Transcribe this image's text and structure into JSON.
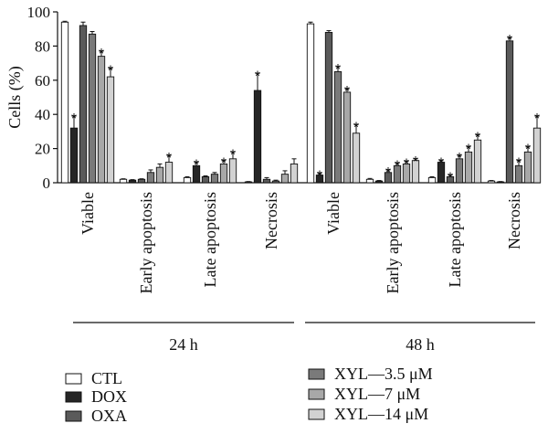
{
  "chart_data": {
    "type": "bar",
    "ylabel": "Cells (%)",
    "ylim": [
      0,
      100
    ],
    "yticks": [
      0,
      20,
      40,
      60,
      80,
      100
    ],
    "groups": [
      {
        "label": "24 h",
        "categories": [
          "Viable",
          "Early apoptosis",
          "Late apoptosis",
          "Necrosis"
        ],
        "series": [
          {
            "name": "CTL",
            "values": [
              94,
              2,
              3,
              0.5
            ],
            "errors": [
              0.5,
              0.3,
              0.5,
              0.2
            ],
            "significant": [
              false,
              false,
              false,
              false
            ]
          },
          {
            "name": "DOX",
            "values": [
              32,
              1.5,
              10,
              54
            ],
            "errors": [
              7,
              0.3,
              2,
              10
            ],
            "significant": [
              true,
              false,
              true,
              true
            ]
          },
          {
            "name": "OXA",
            "values": [
              92,
              2,
              3.5,
              2
            ],
            "errors": [
              2,
              0.3,
              0.5,
              1
            ],
            "significant": [
              false,
              false,
              false,
              false
            ]
          },
          {
            "name": "XYL—3.5 μM",
            "values": [
              87,
              6,
              5,
              1
            ],
            "errors": [
              1.5,
              1.5,
              1,
              0.5
            ],
            "significant": [
              false,
              false,
              false,
              false
            ]
          },
          {
            "name": "XYL—7 μM",
            "values": [
              74,
              9,
              11,
              5
            ],
            "errors": [
              3,
              2,
              2,
              2
            ],
            "significant": [
              true,
              false,
              true,
              false
            ]
          },
          {
            "name": "XYL—14 μM",
            "values": [
              62,
              12,
              14,
              11
            ],
            "errors": [
              5,
              4,
              4,
              3
            ],
            "significant": [
              true,
              true,
              true,
              false
            ]
          }
        ]
      },
      {
        "label": "48 h",
        "categories": [
          "Viable",
          "Early apoptosis",
          "Late apoptosis",
          "Necrosis"
        ],
        "series": [
          {
            "name": "CTL",
            "values": [
              93,
              2,
              3,
              1
            ],
            "errors": [
              1,
              0.5,
              0.5,
              0.3
            ],
            "significant": [
              false,
              false,
              false,
              false
            ]
          },
          {
            "name": "DOX",
            "values": [
              4.5,
              1,
              12,
              0.5
            ],
            "errors": [
              1,
              0.3,
              1,
              0.2
            ],
            "significant": [
              true,
              false,
              true,
              false
            ]
          },
          {
            "name": "OXA",
            "values": [
              88,
              6,
              3.5,
              83
            ],
            "errors": [
              1,
              1.5,
              1,
              2
            ],
            "significant": [
              false,
              true,
              true,
              true
            ]
          },
          {
            "name": "XYL—3.5 μM",
            "values": [
              65,
              10,
              14,
              10
            ],
            "errors": [
              3,
              1.5,
              2,
              3
            ],
            "significant": [
              true,
              true,
              true,
              true
            ]
          },
          {
            "name": "XYL—7 μM",
            "values": [
              53,
              11,
              18,
              18
            ],
            "errors": [
              2,
              1.5,
              3,
              3
            ],
            "significant": [
              true,
              true,
              true,
              true
            ]
          },
          {
            "name": "XYL—14 μM",
            "values": [
              29,
              13,
              25,
              32
            ],
            "errors": [
              5,
              1,
              3,
              7
            ],
            "significant": [
              true,
              true,
              true,
              true
            ]
          }
        ]
      }
    ],
    "significance_marker": "*",
    "legend_position": "bottom",
    "colors": {
      "CTL": "#ffffff",
      "DOX": "#262626",
      "OXA": "#5a5a5a",
      "XYL—3.5 μM": "#7a7a7a",
      "XYL—7 μM": "#a8a8a8",
      "XYL—14 μM": "#d2d2d2"
    }
  }
}
